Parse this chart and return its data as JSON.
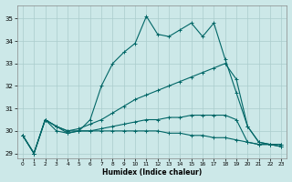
{
  "xlabel": "Humidex (Indice chaleur)",
  "bg_color": "#cce8e8",
  "grid_color": "#aacccc",
  "line_color": "#006666",
  "xlim": [
    -0.5,
    23.5
  ],
  "ylim": [
    28.8,
    35.6
  ],
  "xticks": [
    0,
    1,
    2,
    3,
    4,
    5,
    6,
    7,
    8,
    9,
    10,
    11,
    12,
    13,
    14,
    15,
    16,
    17,
    18,
    19,
    20,
    21,
    22,
    23
  ],
  "yticks": [
    29,
    30,
    31,
    32,
    33,
    34,
    35
  ],
  "line1_x": [
    0,
    1,
    2,
    3,
    4,
    5,
    6,
    7,
    8,
    9,
    10,
    11,
    12,
    13,
    14,
    15,
    16,
    17,
    18,
    19,
    20,
    21,
    22,
    23
  ],
  "line1_y": [
    29.8,
    29.0,
    30.5,
    30.0,
    29.9,
    30.0,
    30.5,
    32.0,
    33.0,
    33.5,
    33.9,
    35.1,
    34.3,
    34.2,
    34.5,
    34.8,
    34.2,
    34.8,
    33.2,
    31.7,
    30.2,
    29.5,
    29.4,
    29.4
  ],
  "line2_x": [
    0,
    1,
    2,
    3,
    4,
    5,
    6,
    7,
    8,
    9,
    10,
    11,
    12,
    13,
    14,
    15,
    16,
    17,
    18,
    19,
    20,
    21,
    22,
    23
  ],
  "line2_y": [
    29.8,
    29.0,
    30.5,
    30.2,
    30.0,
    30.1,
    30.3,
    30.5,
    30.8,
    31.1,
    31.4,
    31.6,
    31.8,
    32.0,
    32.2,
    32.4,
    32.6,
    32.8,
    33.0,
    32.3,
    30.2,
    29.5,
    29.4,
    29.4
  ],
  "line3_x": [
    0,
    1,
    2,
    3,
    4,
    5,
    6,
    7,
    8,
    9,
    10,
    11,
    12,
    13,
    14,
    15,
    16,
    17,
    18,
    19,
    20,
    21,
    22,
    23
  ],
  "line3_y": [
    29.8,
    29.0,
    30.5,
    30.2,
    30.0,
    30.0,
    30.0,
    30.1,
    30.2,
    30.3,
    30.4,
    30.5,
    30.5,
    30.6,
    30.6,
    30.7,
    30.7,
    30.7,
    30.7,
    30.5,
    29.5,
    29.4,
    29.4,
    29.3
  ],
  "line4_x": [
    0,
    1,
    2,
    3,
    4,
    5,
    6,
    7,
    8,
    9,
    10,
    11,
    12,
    13,
    14,
    15,
    16,
    17,
    18,
    19,
    20,
    21,
    22,
    23
  ],
  "line4_y": [
    29.8,
    29.0,
    30.5,
    30.2,
    29.9,
    30.0,
    30.0,
    30.0,
    30.0,
    30.0,
    30.0,
    30.0,
    30.0,
    29.9,
    29.9,
    29.8,
    29.8,
    29.7,
    29.7,
    29.6,
    29.5,
    29.4,
    29.4,
    29.3
  ]
}
